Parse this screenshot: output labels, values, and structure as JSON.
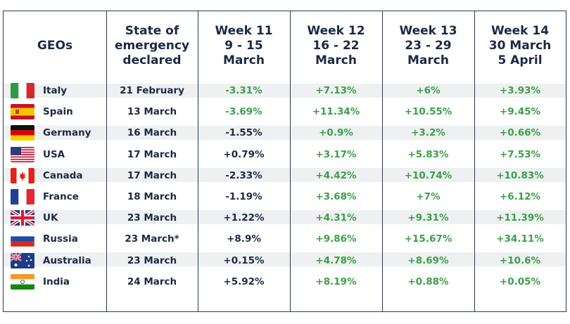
{
  "headers": {
    "geos": "GEOs",
    "state": [
      "State of",
      "emergency",
      "declared"
    ],
    "weeks": [
      [
        "Week 11",
        "9 - 15",
        "March"
      ],
      [
        "Week 12",
        "16 - 22",
        "March"
      ],
      [
        "Week 13",
        "23 - 29",
        "March"
      ],
      [
        "Week 14",
        "30 March",
        "5 April"
      ]
    ]
  },
  "rows": [
    {
      "geo": "Italy",
      "flag": "italy-flag-icon",
      "declared": "21 February",
      "w11": "-3.31%",
      "w12": "+7.13%",
      "w13": "+6%",
      "w14": "+3.93%",
      "w11_color": "green"
    },
    {
      "geo": "Spain",
      "flag": "spain-flag-icon",
      "declared": "13 March",
      "w11": "-3.69%",
      "w12": "+11.34%",
      "w13": "+10.55%",
      "w14": "+9.45%",
      "w11_color": "green"
    },
    {
      "geo": "Germany",
      "flag": "germany-flag-icon",
      "declared": "16 March",
      "w11": "-1.55%",
      "w12": "+0.9%",
      "w13": "+3.2%",
      "w14": "+0.66%",
      "w11_color": "dark"
    },
    {
      "geo": "USA",
      "flag": "usa-flag-icon",
      "declared": "17 March",
      "w11": "+0.79%",
      "w12": "+3.17%",
      "w13": "+5.83%",
      "w14": "+7.53%",
      "w11_color": "dark"
    },
    {
      "geo": "Canada",
      "flag": "canada-flag-icon",
      "declared": "17 March",
      "w11": "-2.33%",
      "w12": "+4.42%",
      "w13": "+10.74%",
      "w14": "+10.83%",
      "w11_color": "dark"
    },
    {
      "geo": "France",
      "flag": "france-flag-icon",
      "declared": "18 March",
      "w11": "-1.19%",
      "w12": "+3.68%",
      "w13": "+7%",
      "w14": "+6.12%",
      "w11_color": "dark"
    },
    {
      "geo": "UK",
      "flag": "uk-flag-icon",
      "declared": "23 March",
      "w11": "+1.22%",
      "w12": "+4.31%",
      "w13": "+9.31%",
      "w14": "+11.39%",
      "w11_color": "dark"
    },
    {
      "geo": "Russia",
      "flag": "russia-flag-icon",
      "declared": "23 March*",
      "w11": "+8.9%",
      "w12": "+9.86%",
      "w13": "+15.67%",
      "w14": "+34.11%",
      "w11_color": "dark"
    },
    {
      "geo": "Australia",
      "flag": "australia-flag-icon",
      "declared": "23 March",
      "w11": "+0.15%",
      "w12": "+4.78%",
      "w13": "+8.69%",
      "w14": "+10.6%",
      "w11_color": "dark"
    },
    {
      "geo": "India",
      "flag": "india-flag-icon",
      "declared": "24 March",
      "w11": "+5.92%",
      "w12": "+8.19%",
      "w13": "+0.88%",
      "w14": "+0.05%",
      "w11_color": "dark"
    }
  ],
  "colors": {
    "text": "#1b2a44",
    "green": "#3aa046",
    "border": "#2b3a52",
    "stripe": "#eef0f2"
  }
}
